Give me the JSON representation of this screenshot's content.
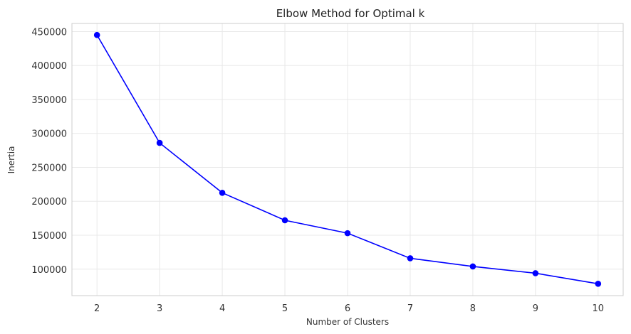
{
  "chart_data": {
    "type": "line",
    "title": "Elbow Method for Optimal k",
    "xlabel": "Number of Clusters",
    "ylabel": "Inertia",
    "x": [
      2,
      3,
      4,
      5,
      6,
      7,
      8,
      9,
      10
    ],
    "series": [
      {
        "values": [
          445000,
          286000,
          212500,
          172000,
          153000,
          116000,
          104000,
          94000,
          78500
        ],
        "color": "#0000ff",
        "marker": "circle"
      }
    ],
    "xlim": [
      1.6,
      10.4
    ],
    "ylim": [
      61000,
      462000
    ],
    "xticks": [
      "2",
      "3",
      "4",
      "5",
      "6",
      "7",
      "8",
      "9",
      "10"
    ],
    "yticks": [
      "100000",
      "150000",
      "200000",
      "250000",
      "300000",
      "350000",
      "400000",
      "450000"
    ],
    "grid": true
  }
}
